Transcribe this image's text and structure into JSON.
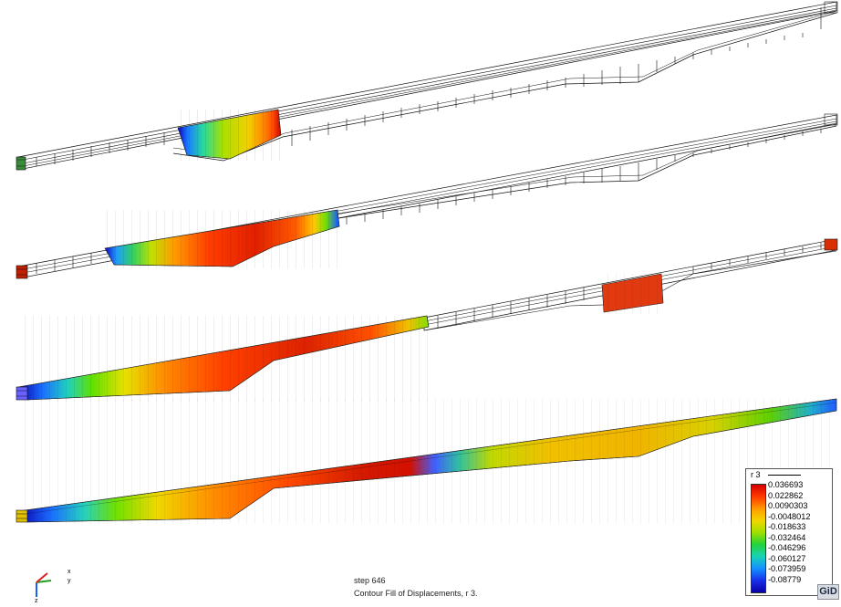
{
  "legend": {
    "title": "r 3",
    "values": [
      "0.036693",
      "0.022862",
      "0.0090303",
      "-0.0048012",
      "-0.018633",
      "-0.032464",
      "-0.046296",
      "-0.060127",
      "-0.073959",
      "-0.08779"
    ],
    "colors": [
      "#d40000",
      "#ff3a00",
      "#ff9a00",
      "#f2d600",
      "#9ee000",
      "#22d23a",
      "#18d2b8",
      "#1490ff",
      "#1830e8",
      "#0a00a8"
    ]
  },
  "status": {
    "step": "step 646",
    "caption": "Contour Fill of Displacements, r 3."
  },
  "axes": {
    "x": "x",
    "y": "y",
    "z": "z"
  },
  "logo": "GiD"
}
